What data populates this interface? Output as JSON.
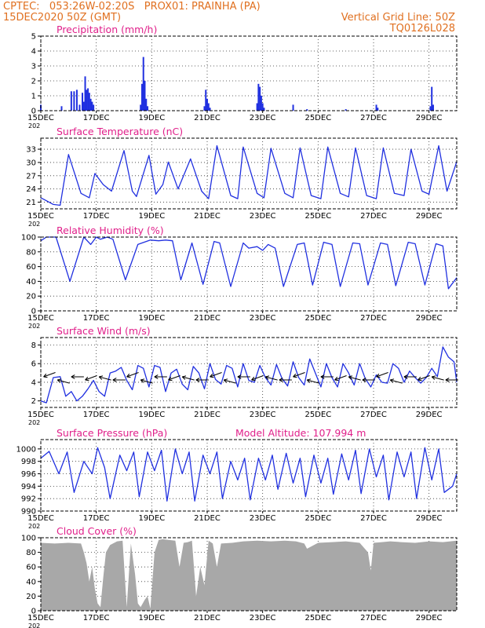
{
  "header": {
    "line1_left": "CPTEC:   053:26W-02:20S   PROX01: PRAINHA (PA)",
    "line2_left": "15DEC2020 50Z (GMT)",
    "line2_right": "Vertical Grid Line: 50Z",
    "line3_right": "TQ0126L028"
  },
  "x_axis": {
    "ticks": [
      "15DEC",
      "17DEC",
      "19DEC",
      "21DEC",
      "23DEC",
      "25DEC",
      "27DEC",
      "29DEC"
    ],
    "tick_days": [
      0,
      2,
      4,
      6,
      8,
      10,
      12,
      14
    ],
    "range_days": [
      0,
      15
    ],
    "year_fragment": "202"
  },
  "chart_data": [
    {
      "type": "bar",
      "id": "precip",
      "title": "Precipitation (mm/h)",
      "yticks": [
        "0",
        "1",
        "2",
        "3",
        "4",
        "5"
      ],
      "ylim": [
        0,
        5
      ],
      "color": "#2030e0",
      "x_days": [
        0.0,
        0.75,
        1.1,
        1.2,
        1.3,
        1.4,
        1.5,
        1.55,
        1.6,
        1.65,
        1.7,
        1.75,
        1.8,
        1.85,
        1.9,
        3.6,
        3.65,
        3.7,
        3.75,
        3.8,
        3.85,
        5.9,
        5.95,
        6.0,
        6.05,
        6.1,
        7.8,
        7.85,
        7.9,
        7.95,
        8.0,
        8.05,
        9.1,
        9.6,
        11.0,
        12.1,
        12.15,
        14.05,
        14.1,
        14.15
      ],
      "values": [
        0.4,
        0.3,
        1.3,
        1.3,
        1.4,
        0.4,
        1.2,
        0.6,
        2.3,
        1.4,
        1.5,
        1.2,
        0.8,
        0.6,
        0.4,
        0.4,
        1.8,
        3.6,
        2.0,
        0.8,
        0.3,
        0.3,
        1.4,
        0.8,
        0.5,
        0.2,
        0.5,
        1.8,
        1.6,
        1.0,
        0.5,
        0.2,
        0.4,
        0.1,
        0.1,
        0.4,
        0.2,
        0.3,
        1.6,
        0.4
      ]
    },
    {
      "type": "line",
      "id": "temp",
      "title": "Surface Temperature (nC)",
      "yticks": [
        "21",
        "24",
        "27",
        "30",
        "33"
      ],
      "ylim": [
        19.5,
        35.5
      ],
      "color": "#2030e0",
      "x_days": [
        0.0,
        0.45,
        0.7,
        1.0,
        1.45,
        1.75,
        1.95,
        2.25,
        2.55,
        3.0,
        3.3,
        3.45,
        3.9,
        4.15,
        4.4,
        4.6,
        4.95,
        5.4,
        5.8,
        6.05,
        6.35,
        6.85,
        7.1,
        7.3,
        7.8,
        8.05,
        8.3,
        8.8,
        9.1,
        9.35,
        9.75,
        10.1,
        10.35,
        10.8,
        11.1,
        11.35,
        11.75,
        12.1,
        12.35,
        12.75,
        13.1,
        13.35,
        13.75,
        14.0,
        14.35,
        14.65,
        15.0
      ],
      "values": [
        22.0,
        20.5,
        20.3,
        31.8,
        23.0,
        22.0,
        27.5,
        25.0,
        23.5,
        32.7,
        23.5,
        22.3,
        31.6,
        22.8,
        25.0,
        30.1,
        24.0,
        30.8,
        23.5,
        21.8,
        33.8,
        22.5,
        21.8,
        33.5,
        23.0,
        22.0,
        33.2,
        23.0,
        22.0,
        33.3,
        22.5,
        21.8,
        33.5,
        23.0,
        22.2,
        33.3,
        22.5,
        21.8,
        33.3,
        23.0,
        22.5,
        33.0,
        23.5,
        22.8,
        33.8,
        23.5,
        30.2
      ]
    },
    {
      "type": "line",
      "id": "rh",
      "title": "Relative Humidity (%)",
      "yticks": [
        "0",
        "20",
        "40",
        "60",
        "80",
        "100"
      ],
      "ylim": [
        0,
        100
      ],
      "color": "#2030e0",
      "x_days": [
        0.0,
        0.2,
        0.55,
        1.05,
        1.55,
        1.8,
        2.0,
        2.15,
        2.4,
        2.6,
        3.05,
        3.5,
        3.95,
        4.25,
        4.5,
        4.75,
        5.05,
        5.45,
        5.85,
        6.25,
        6.45,
        6.85,
        7.3,
        7.5,
        7.8,
        8.0,
        8.2,
        8.45,
        8.75,
        9.25,
        9.5,
        9.8,
        10.2,
        10.5,
        10.8,
        11.25,
        11.5,
        11.8,
        12.25,
        12.5,
        12.8,
        13.25,
        13.5,
        13.85,
        14.25,
        14.5,
        14.7,
        15.0
      ],
      "values": [
        95.0,
        100.0,
        100.0,
        40.0,
        100.0,
        90.0,
        100.0,
        97.0,
        100.0,
        97.0,
        42.0,
        90.0,
        96.0,
        95.0,
        96.0,
        95.0,
        42.0,
        92.0,
        36.0,
        94.0,
        92.0,
        33.0,
        92.0,
        85.0,
        87.0,
        82.0,
        90.0,
        85.0,
        33.0,
        90.0,
        92.0,
        35.0,
        93.0,
        90.0,
        33.0,
        92.0,
        91.0,
        35.0,
        92.0,
        90.0,
        34.0,
        93.0,
        91.0,
        35.0,
        91.0,
        88.0,
        30.0,
        45.0
      ]
    },
    {
      "type": "line",
      "id": "wind",
      "title": "Surface Wind (m/s)",
      "yticks": [
        "2",
        "4",
        "6",
        "8"
      ],
      "ylim": [
        1.3,
        8.8
      ],
      "color": "#2030e0",
      "x_days": [
        0.0,
        0.2,
        0.45,
        0.7,
        0.9,
        1.1,
        1.3,
        1.5,
        1.7,
        1.9,
        2.1,
        2.3,
        2.5,
        2.7,
        2.9,
        3.1,
        3.3,
        3.5,
        3.7,
        3.9,
        4.1,
        4.3,
        4.5,
        4.7,
        4.9,
        5.1,
        5.3,
        5.5,
        5.7,
        5.9,
        6.1,
        6.3,
        6.5,
        6.7,
        6.9,
        7.1,
        7.3,
        7.5,
        7.7,
        7.9,
        8.1,
        8.3,
        8.5,
        8.7,
        8.9,
        9.1,
        9.3,
        9.5,
        9.7,
        9.9,
        10.1,
        10.3,
        10.5,
        10.7,
        10.9,
        11.1,
        11.3,
        11.5,
        11.7,
        11.9,
        12.1,
        12.3,
        12.5,
        12.7,
        12.9,
        13.1,
        13.3,
        13.5,
        13.7,
        13.9,
        14.1,
        14.3,
        14.5,
        14.7,
        14.9,
        15.0
      ],
      "values": [
        2.0,
        1.8,
        4.5,
        4.6,
        2.5,
        3.0,
        2.0,
        2.5,
        3.3,
        4.2,
        3.0,
        2.5,
        5.0,
        5.2,
        5.6,
        4.2,
        3.2,
        5.8,
        5.5,
        3.5,
        5.8,
        5.6,
        3.0,
        5.0,
        5.4,
        3.8,
        3.2,
        5.7,
        5.0,
        3.3,
        6.0,
        4.3,
        3.8,
        5.8,
        5.5,
        3.5,
        6.0,
        4.2,
        4.0,
        5.8,
        4.5,
        3.7,
        5.9,
        4.4,
        3.6,
        6.2,
        4.5,
        3.7,
        6.5,
        5.0,
        3.5,
        6.0,
        4.5,
        3.5,
        6.0,
        5.0,
        3.7,
        6.0,
        4.4,
        3.5,
        4.8,
        4.0,
        3.9,
        6.0,
        5.5,
        4.0,
        5.2,
        4.5,
        3.9,
        4.5,
        5.5,
        4.6,
        7.8,
        6.7,
        6.2,
        4.0
      ]
    },
    {
      "type": "line",
      "id": "pres",
      "title": "Surface Pressure (hPa)",
      "extra_label": "Model Altitude: 107.994 m",
      "yticks": [
        "990",
        "992",
        "994",
        "996",
        "998",
        "1000"
      ],
      "ylim": [
        990,
        1001.5
      ],
      "color": "#2030e0",
      "x_days": [
        0.0,
        0.3,
        0.65,
        0.95,
        1.2,
        1.55,
        1.85,
        2.05,
        2.3,
        2.5,
        2.85,
        3.1,
        3.35,
        3.55,
        3.85,
        4.1,
        4.35,
        4.55,
        4.85,
        5.1,
        5.35,
        5.55,
        5.85,
        6.1,
        6.35,
        6.55,
        6.85,
        7.1,
        7.35,
        7.55,
        7.85,
        8.1,
        8.35,
        8.55,
        8.85,
        9.1,
        9.35,
        9.55,
        9.85,
        10.1,
        10.35,
        10.55,
        10.85,
        11.1,
        11.35,
        11.55,
        11.85,
        12.1,
        12.35,
        12.55,
        12.85,
        13.1,
        13.35,
        13.55,
        13.85,
        14.1,
        14.35,
        14.55,
        14.85,
        15.0
      ],
      "values": [
        998.5,
        999.6,
        996.0,
        999.5,
        993.0,
        998.0,
        996.0,
        1000.2,
        997.0,
        992.0,
        999.0,
        996.5,
        999.5,
        992.3,
        999.5,
        996.5,
        999.8,
        991.6,
        1000.0,
        996.0,
        999.5,
        991.6,
        999.0,
        996.0,
        999.5,
        992.0,
        998.0,
        995.0,
        998.5,
        991.8,
        998.5,
        995.0,
        999.0,
        993.5,
        999.3,
        994.5,
        998.5,
        992.3,
        999.0,
        994.5,
        998.5,
        992.7,
        999.2,
        995.0,
        999.8,
        992.8,
        1000.0,
        995.5,
        999.0,
        991.8,
        999.5,
        995.5,
        999.5,
        992.0,
        1000.2,
        995.0,
        1000.0,
        993.0,
        994.0,
        996.0
      ]
    },
    {
      "type": "area",
      "id": "cloud",
      "title": "Cloud Cover (%)",
      "yticks": [
        "0",
        "20",
        "40",
        "60",
        "80",
        "100"
      ],
      "ylim": [
        0,
        100
      ],
      "color": "#a8a8a8",
      "x_days": [
        0.0,
        0.5,
        1.0,
        1.45,
        1.55,
        1.65,
        1.75,
        1.85,
        1.95,
        2.05,
        2.15,
        2.25,
        2.35,
        2.5,
        2.75,
        2.95,
        3.1,
        3.25,
        3.4,
        3.5,
        3.6,
        3.75,
        3.85,
        3.95,
        4.1,
        4.25,
        4.4,
        4.6,
        4.85,
        5.0,
        5.15,
        5.3,
        5.45,
        5.6,
        5.75,
        5.9,
        6.05,
        6.2,
        6.35,
        6.5,
        6.9,
        7.3,
        7.8,
        8.3,
        8.8,
        9.2,
        9.5,
        9.6,
        10.0,
        10.5,
        11.0,
        11.5,
        11.8,
        11.9,
        12.0,
        12.3,
        12.6,
        13.0,
        13.5,
        14.0,
        14.5,
        15.0
      ],
      "values": [
        93.0,
        92.0,
        93.0,
        92.0,
        80.0,
        65.0,
        40.0,
        60.0,
        30.0,
        10.0,
        5.0,
        45.0,
        80.0,
        90.0,
        95.0,
        96.0,
        5.0,
        92.0,
        50.0,
        10.0,
        5.0,
        15.0,
        20.0,
        3.0,
        80.0,
        97.0,
        98.0,
        97.0,
        96.0,
        60.0,
        93.0,
        94.0,
        96.0,
        20.0,
        60.0,
        35.0,
        96.0,
        92.0,
        60.0,
        92.0,
        93.0,
        95.0,
        96.0,
        95.0,
        96.0,
        95.0,
        92.0,
        85.0,
        93.0,
        94.0,
        95.0,
        93.0,
        80.0,
        55.0,
        93.0,
        94.0,
        95.0,
        94.0,
        93.0,
        95.0,
        94.0,
        96.0
      ]
    }
  ]
}
